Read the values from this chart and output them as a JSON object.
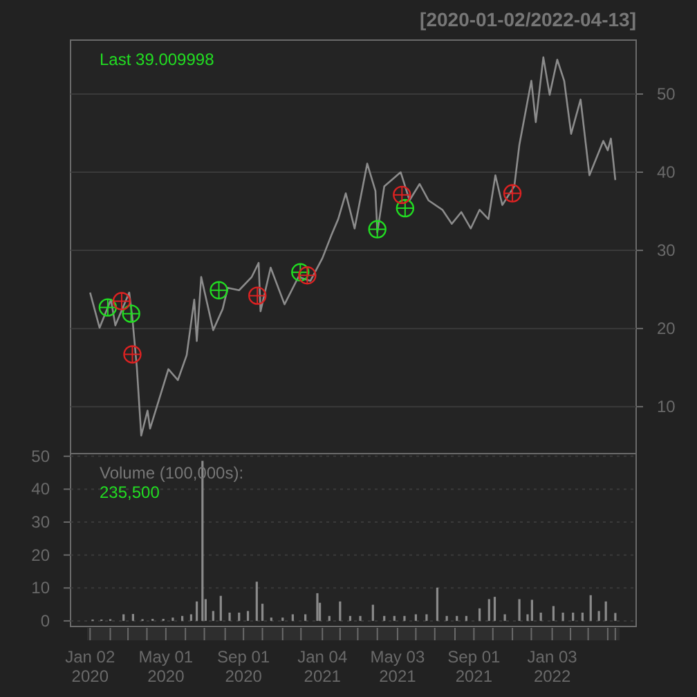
{
  "chart_data": [
    {
      "type": "line",
      "title": "[2020-01-02/2022-04-13]",
      "annotations": [
        "Last 39.009998"
      ],
      "xlim": [
        "2019-12-02",
        "2022-05-16"
      ],
      "ylim": [
        4,
        56.9
      ],
      "yticks": [
        10,
        20,
        30,
        40,
        50
      ],
      "grid": "y",
      "tick_labels": "y",
      "series": [
        {
          "color": "#8c8c8c",
          "x": [
            "2020-01-02",
            "2020-01-17",
            "2020-02-04",
            "2020-02-11",
            "2020-03-04",
            "2020-03-09",
            "2020-03-16",
            "2020-03-23",
            "2020-04-02",
            "2020-04-06",
            "2020-04-24",
            "2020-05-05",
            "2020-05-20",
            "2020-06-03",
            "2020-06-15",
            "2020-06-19",
            "2020-06-26",
            "2020-07-15",
            "2020-07-30",
            "2020-08-07",
            "2020-08-25",
            "2020-09-14",
            "2020-09-25",
            "2020-09-28",
            "2020-10-14",
            "2020-11-05",
            "2020-11-27",
            "2020-12-16",
            "2021-01-04",
            "2021-01-18",
            "2021-01-29",
            "2021-02-10",
            "2021-02-24",
            "2021-03-16",
            "2021-03-29",
            "2021-04-01",
            "2021-04-12",
            "2021-05-08",
            "2021-05-22",
            "2021-06-07",
            "2021-06-21",
            "2021-07-13",
            "2021-07-28",
            "2021-08-12",
            "2021-08-27",
            "2021-09-10",
            "2021-09-24",
            "2021-10-05",
            "2021-10-16",
            "2021-11-04",
            "2021-11-12",
            "2021-12-01",
            "2021-12-08",
            "2021-12-20",
            "2021-12-30",
            "2022-01-11",
            "2022-01-22",
            "2022-02-02",
            "2022-02-17",
            "2022-03-03",
            "2022-03-25",
            "2022-04-01",
            "2022-04-06",
            "2022-04-13"
          ],
          "values": [
            24.6,
            20.1,
            23.7,
            20.4,
            24.6,
            21.3,
            15.1,
            6.3,
            9.5,
            7.2,
            11.9,
            14.8,
            13.4,
            16.6,
            23.7,
            18.4,
            26.6,
            19.8,
            22.5,
            25.2,
            24.9,
            26.6,
            28.4,
            22.2,
            27.8,
            23.1,
            26.6,
            26.1,
            29.0,
            31.9,
            34.0,
            37.3,
            32.8,
            41.1,
            37.6,
            32.3,
            38.2,
            40.0,
            36.4,
            38.5,
            36.4,
            35.2,
            33.4,
            34.9,
            32.8,
            35.2,
            34.0,
            39.6,
            35.8,
            38.2,
            43.5,
            51.7,
            46.4,
            54.7,
            49.9,
            54.4,
            51.7,
            44.9,
            49.3,
            39.6,
            44.0,
            42.8,
            44.3,
            39.0
          ]
        },
        {
          "type": "scatter",
          "marker": "circle",
          "color": "#22dd22",
          "x": [
            "2020-01-30",
            "2020-03-07",
            "2020-07-24",
            "2020-11-30",
            "2021-04-01",
            "2021-05-15"
          ],
          "values": [
            22.7,
            21.9,
            24.9,
            27.2,
            32.7,
            35.4
          ]
        },
        {
          "type": "scatter",
          "marker": "circle",
          "color": "#dd2222",
          "x": [
            "2020-02-21",
            "2020-03-09",
            "2020-09-23",
            "2020-12-11",
            "2021-05-10",
            "2021-11-01"
          ],
          "values": [
            23.5,
            16.7,
            24.2,
            26.8,
            37.1,
            37.3
          ]
        }
      ]
    },
    {
      "type": "bar",
      "annotations": [
        "Volume (100,000s):",
        "235,500"
      ],
      "xlim": [
        "2019-12-02",
        "2022-05-16"
      ],
      "ylim": [
        -1.7,
        50.8
      ],
      "yticks": [
        0,
        10,
        20,
        30,
        40,
        50
      ],
      "grid": "y",
      "color": "#8a8a8a",
      "xticks": [
        {
          "value": "2020-01-02",
          "label": "Jan 02\n2020"
        },
        {
          "value": "2020-02-03",
          "label": null
        },
        {
          "value": "2020-03-02",
          "label": null
        },
        {
          "value": "2020-04-01",
          "label": null
        },
        {
          "value": "2020-05-01",
          "label": "May 01\n2020"
        },
        {
          "value": "2020-06-01",
          "label": null
        },
        {
          "value": "2020-07-01",
          "label": null
        },
        {
          "value": "2020-08-03",
          "label": null
        },
        {
          "value": "2020-09-01",
          "label": "Sep 01\n2020"
        },
        {
          "value": "2020-10-01",
          "label": null
        },
        {
          "value": "2020-11-02",
          "label": null
        },
        {
          "value": "2020-12-01",
          "label": null
        },
        {
          "value": "2021-01-04",
          "label": "Jan 04\n2021"
        },
        {
          "value": "2021-02-01",
          "label": null
        },
        {
          "value": "2021-03-01",
          "label": null
        },
        {
          "value": "2021-04-01",
          "label": null
        },
        {
          "value": "2021-05-03",
          "label": "May 03\n2021"
        },
        {
          "value": "2021-06-01",
          "label": null
        },
        {
          "value": "2021-07-01",
          "label": null
        },
        {
          "value": "2021-08-02",
          "label": null
        },
        {
          "value": "2021-09-01",
          "label": "Sep 01\n2021"
        },
        {
          "value": "2021-10-01",
          "label": null
        },
        {
          "value": "2021-11-01",
          "label": null
        },
        {
          "value": "2021-12-01",
          "label": null
        },
        {
          "value": "2022-01-03",
          "label": "Jan 03\n2022"
        },
        {
          "value": "2022-02-01",
          "label": null
        },
        {
          "value": "2022-03-01",
          "label": null
        },
        {
          "value": "2022-04-01",
          "label": null
        },
        {
          "value": "2022-04-13",
          "label": null
        }
      ],
      "x": [
        "2020-01-06",
        "2020-01-20",
        "2020-02-03",
        "2020-02-24",
        "2020-03-10",
        "2020-03-25",
        "2020-04-10",
        "2020-04-27",
        "2020-05-12",
        "2020-05-27",
        "2020-06-10",
        "2020-06-19",
        "2020-06-28",
        "2020-07-03",
        "2020-07-15",
        "2020-07-27",
        "2020-08-10",
        "2020-08-25",
        "2020-09-08",
        "2020-09-22",
        "2020-10-01",
        "2020-10-15",
        "2020-11-02",
        "2020-11-18",
        "2020-12-08",
        "2020-12-27",
        "2020-12-31",
        "2021-01-15",
        "2021-02-01",
        "2021-02-17",
        "2021-03-05",
        "2021-03-25",
        "2021-04-12",
        "2021-04-28",
        "2021-05-14",
        "2021-06-01",
        "2021-06-18",
        "2021-07-05",
        "2021-07-20",
        "2021-08-05",
        "2021-08-20",
        "2021-09-10",
        "2021-09-25",
        "2021-10-04",
        "2021-10-20",
        "2021-11-12",
        "2021-11-25",
        "2021-12-02",
        "2021-12-16",
        "2022-01-05",
        "2022-01-20",
        "2022-02-05",
        "2022-02-20",
        "2022-03-05",
        "2022-03-18",
        "2022-03-29",
        "2022-04-13"
      ],
      "values": [
        0.4,
        0.4,
        0.5,
        2.0,
        2.1,
        0.5,
        0.6,
        0.6,
        1.0,
        1.5,
        2.0,
        5.9,
        48.6,
        6.6,
        3.0,
        7.6,
        2.5,
        2.5,
        3.0,
        11.9,
        5.2,
        1.0,
        1.0,
        2.0,
        2.0,
        8.4,
        5.5,
        1.5,
        5.9,
        1.5,
        1.5,
        4.9,
        1.5,
        1.5,
        1.5,
        2.0,
        2.0,
        10.1,
        1.5,
        1.5,
        1.5,
        3.8,
        6.6,
        7.3,
        2.0,
        6.6,
        2.0,
        6.4,
        2.5,
        4.5,
        2.5,
        2.5,
        2.5,
        7.8,
        3.0,
        5.9,
        2.4
      ]
    }
  ]
}
